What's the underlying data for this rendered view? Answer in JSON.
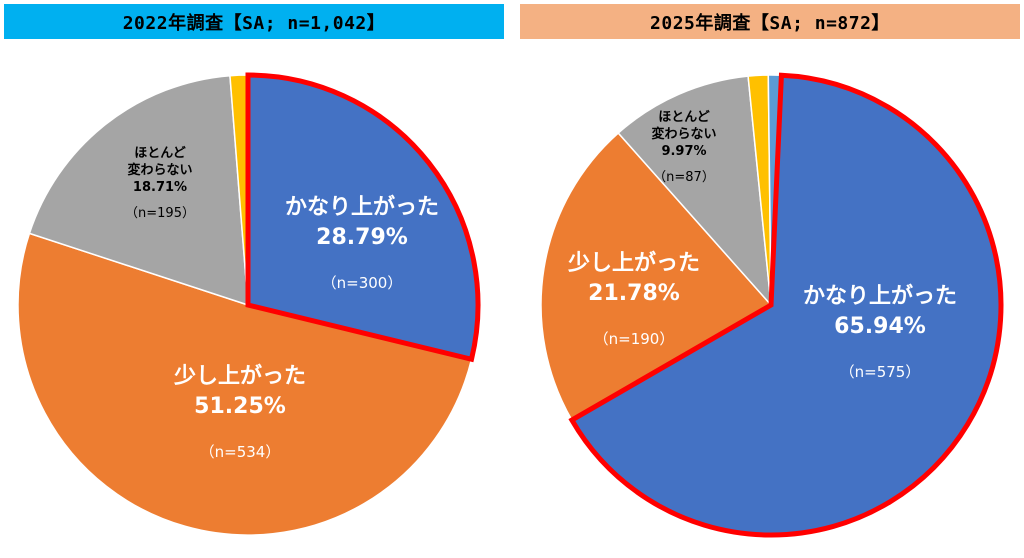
{
  "colors": {
    "header_2022_bg": "#00B0F0",
    "header_2025_bg": "#F4B183",
    "header_text": "#000000",
    "highlight_outline": "#FF0000",
    "slice_significantly": "#4472C4",
    "slice_slightly": "#ED7D31",
    "slice_unchanged": "#A5A5A5",
    "slice_other_1": "#FFC000",
    "slice_other_2": "#5B9BD5",
    "label_on_color": "#FFFFFF",
    "label_on_gray": "#000000"
  },
  "chart_data": [
    {
      "type": "pie",
      "title": "2022年調査【SA; n=1,042】",
      "slices": [
        {
          "name": "かなり上がった",
          "value": 28.79,
          "pct_label": "28.79%",
          "n_label": "（n=300）",
          "color": "#4472C4",
          "highlight": true
        },
        {
          "name": "少し上がった",
          "value": 51.25,
          "pct_label": "51.25%",
          "n_label": "（n=534）",
          "color": "#ED7D31"
        },
        {
          "name": "ほとんど\n変わらない",
          "value": 18.71,
          "pct_label": "18.71%",
          "n_label": "（n=195）",
          "color": "#A5A5A5"
        },
        {
          "name": "",
          "value": 1.25,
          "pct_label": "",
          "n_label": "",
          "color": "#FFC000"
        }
      ]
    },
    {
      "type": "pie",
      "title": "2025年調査【SA; n=872】",
      "slices": [
        {
          "name": "かなり上がった",
          "value": 65.94,
          "pct_label": "65.94%",
          "n_label": "（n=575）",
          "color": "#4472C4",
          "highlight": true
        },
        {
          "name": "少し上がった",
          "value": 21.78,
          "pct_label": "21.78%",
          "n_label": "（n=190）",
          "color": "#ED7D31"
        },
        {
          "name": "ほとんど\n変わらない",
          "value": 9.97,
          "pct_label": "9.97%",
          "n_label": "（n=87）",
          "color": "#A5A5A5"
        },
        {
          "name": "",
          "value": 1.4,
          "pct_label": "",
          "n_label": "",
          "color": "#FFC000"
        },
        {
          "name": "",
          "value": 0.91,
          "pct_label": "",
          "n_label": "",
          "color": "#5B9BD5"
        }
      ]
    }
  ]
}
